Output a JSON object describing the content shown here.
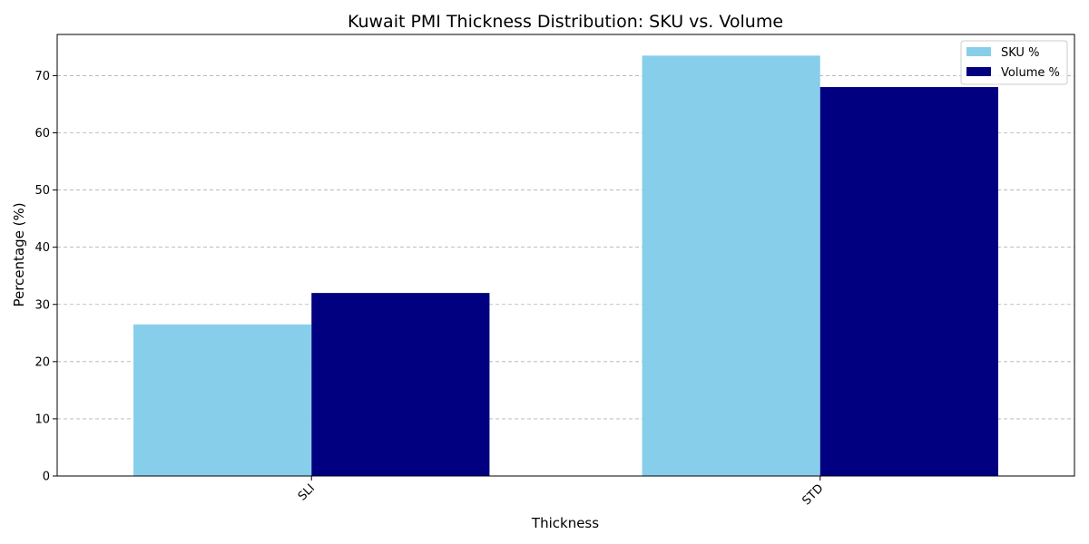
{
  "chart_data": {
    "type": "bar",
    "title": "Kuwait PMI Thickness Distribution: SKU vs. Volume",
    "xlabel": "Thickness",
    "ylabel": "Percentage (%)",
    "categories": [
      "SLI",
      "STD"
    ],
    "series": [
      {
        "name": "SKU %",
        "values": [
          26.5,
          73.5
        ],
        "color": "#87CEEB"
      },
      {
        "name": "Volume %",
        "values": [
          32.0,
          68.0
        ],
        "color": "#000080"
      }
    ],
    "ylim": [
      0,
      77.2
    ],
    "yticks": [
      0,
      10,
      20,
      30,
      40,
      50,
      60,
      70
    ],
    "grid": "y-dashed",
    "legend_position": "top-right",
    "xtick_rotation": 45
  }
}
